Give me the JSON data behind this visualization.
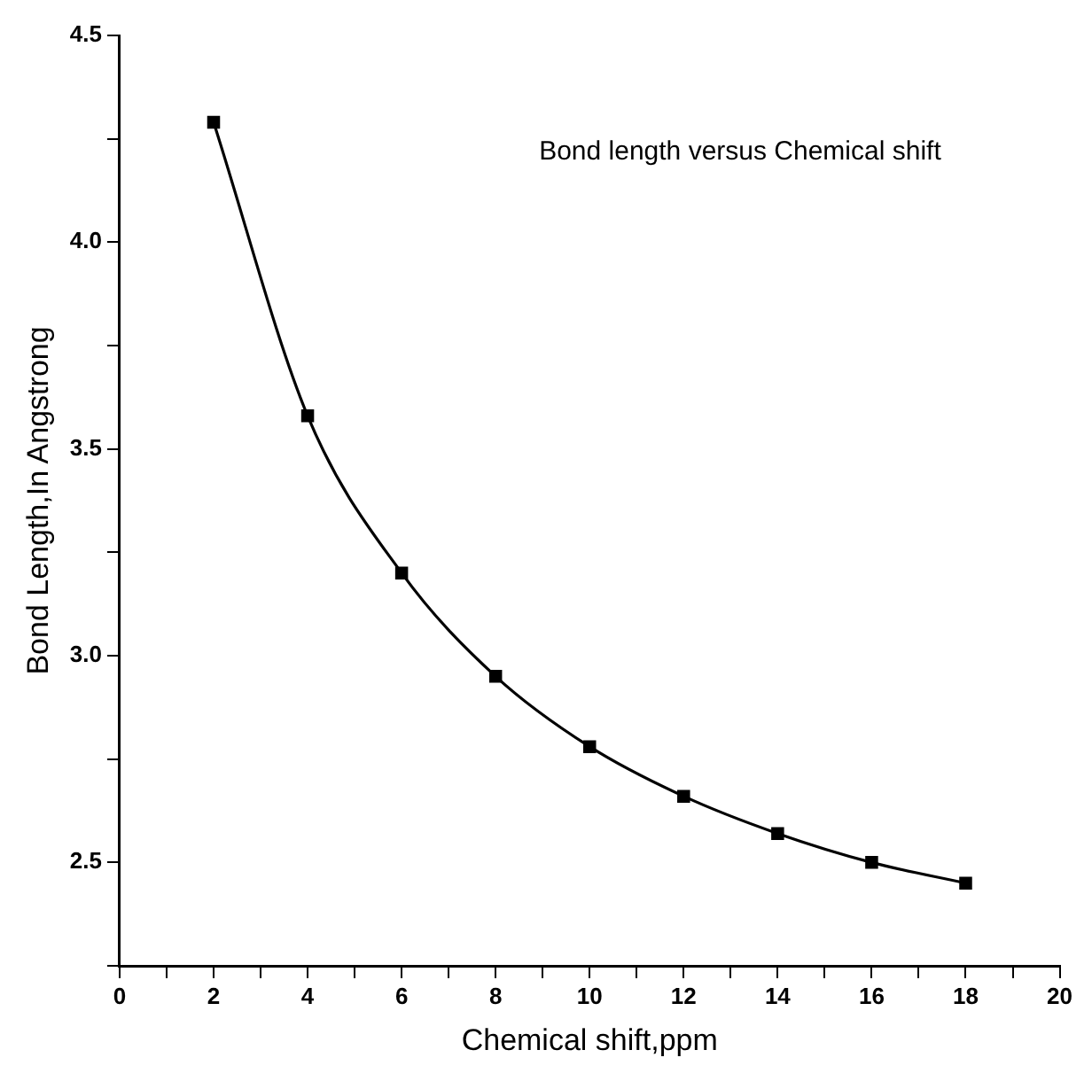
{
  "chart_data": {
    "type": "line",
    "title": "Bond length versus Chemical shift",
    "xlabel": "Chemical shift,ppm",
    "ylabel": "Bond Length,In Angstrong",
    "x": [
      2,
      4,
      6,
      8,
      10,
      12,
      14,
      16,
      18
    ],
    "series": [
      {
        "color": "#000000",
        "values": [
          4.29,
          3.58,
          3.2,
          2.95,
          2.78,
          2.66,
          2.57,
          2.5,
          2.45
        ]
      }
    ],
    "xlim": [
      0,
      20
    ],
    "xticks": [
      0,
      {
        "value": 1,
        "label": null
      },
      2,
      {
        "value": 3,
        "label": null
      },
      4,
      {
        "value": 5,
        "label": null
      },
      6,
      {
        "value": 7,
        "label": null
      },
      8,
      {
        "value": 9,
        "label": null
      },
      10,
      {
        "value": 11,
        "label": null
      },
      12,
      {
        "value": 13,
        "label": null
      },
      14,
      {
        "value": 15,
        "label": null
      },
      16,
      {
        "value": 17,
        "label": null
      },
      18,
      {
        "value": 19,
        "label": null
      },
      20
    ],
    "ylim": [
      2.25,
      4.5
    ],
    "yticks": [
      {
        "value": 2.25,
        "label": null
      },
      2.5,
      {
        "value": 2.75,
        "label": null
      },
      {
        "value": 3,
        "label": "3.0"
      },
      {
        "value": 3.25,
        "label": null
      },
      3.5,
      {
        "value": 3.75,
        "label": null
      },
      {
        "value": 4,
        "label": "4.0"
      },
      {
        "value": 4.25,
        "label": null
      },
      4.5
    ],
    "grid": false,
    "legend": false,
    "marker": "square",
    "line_style": "solid"
  }
}
